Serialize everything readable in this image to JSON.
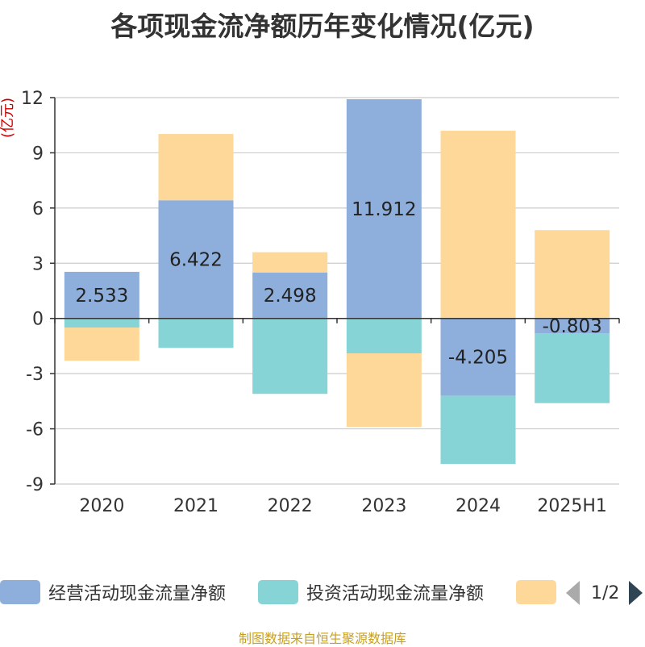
{
  "title": "各项现金流净额历年变化情况(亿元)",
  "source": "制图数据来自恒生聚源数据库",
  "pager": {
    "text": "1/2"
  },
  "colors": {
    "operating": "#8eaedb",
    "investing": "#86d4d6",
    "financing": "#fdd898",
    "axis": "#333333",
    "grid": "#cccccc",
    "ylabel": "#cc0000"
  },
  "chart_data": {
    "type": "bar",
    "stacked": true,
    "title": "各项现金流净额历年变化情况(亿元)",
    "ylabel": "(亿元)",
    "categories": [
      "2020",
      "2021",
      "2022",
      "2023",
      "2024",
      "2025H1"
    ],
    "ylim": [
      -9,
      12
    ],
    "yticks": [
      "12",
      "9",
      "6",
      "3",
      "0",
      "-3",
      "-6",
      "-9"
    ],
    "grid": true,
    "legend_position": "bottom",
    "series": [
      {
        "name": "经营活动现金流量净额",
        "color_key": "operating",
        "values": [
          2.533,
          6.422,
          2.498,
          11.912,
          -4.205,
          -0.803
        ],
        "labels": [
          "2.533",
          "6.422",
          "2.498",
          "11.912",
          "-4.205",
          "-0.803"
        ]
      },
      {
        "name": "投资活动现金流量净额",
        "color_key": "investing",
        "values": [
          -0.5,
          -1.6,
          -4.1,
          -1.9,
          -3.7,
          -3.8
        ]
      },
      {
        "name": "",
        "color_key": "financing",
        "values": [
          -1.8,
          3.6,
          1.1,
          -4.0,
          10.2,
          4.8
        ]
      }
    ]
  }
}
